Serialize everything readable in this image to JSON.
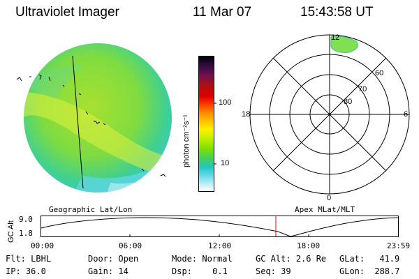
{
  "header": {
    "title": "Ultraviolet Imager",
    "date": "11 Mar 07",
    "time": "15:43:58 UT"
  },
  "colorbar": {
    "unit_label": "photon cm⁻²s⁻¹",
    "ticks": [
      "100",
      "10"
    ],
    "colors": [
      "#000000",
      "#2a0a3a",
      "#6e1050",
      "#b01010",
      "#e00000",
      "#ff4000",
      "#ff8c00",
      "#ffc000",
      "#fff000",
      "#c8f000",
      "#80e000",
      "#40d060",
      "#20c8c0",
      "#60d8e8",
      "#b8ecf4",
      "#ffffff"
    ]
  },
  "polar": {
    "labels": {
      "top": "12",
      "left": "18",
      "right": "6",
      "bottom": "0"
    },
    "lat_labels": [
      "60",
      "70",
      "80"
    ]
  },
  "timeline": {
    "left_label": "Geographic Lat/Lon",
    "right_label": "Apex MLat/MLT",
    "axis_title": "GC Alt",
    "y_ticks": [
      "9.0",
      "1.8"
    ],
    "x_ticks": [
      "00:00",
      "06:00",
      "12:00",
      "18:00",
      "23:59"
    ]
  },
  "status": {
    "row1": [
      {
        "label": "Flt:",
        "value": "LBHL"
      },
      {
        "label": "Door:",
        "value": "Open"
      },
      {
        "label": "Mode:",
        "value": "Normal"
      },
      {
        "label": "GC Alt:",
        "value": "2.6 Re"
      },
      {
        "label": "GLat:",
        "value": "41.9"
      }
    ],
    "row2": [
      {
        "label": "IP:",
        "value": "36.0"
      },
      {
        "label": "Gain:",
        "value": "14"
      },
      {
        "label": "Dsp:",
        "value": "0.1"
      },
      {
        "label": "Seq:",
        "value": "39"
      },
      {
        "label": "GLon:",
        "value": "288.7"
      }
    ]
  }
}
